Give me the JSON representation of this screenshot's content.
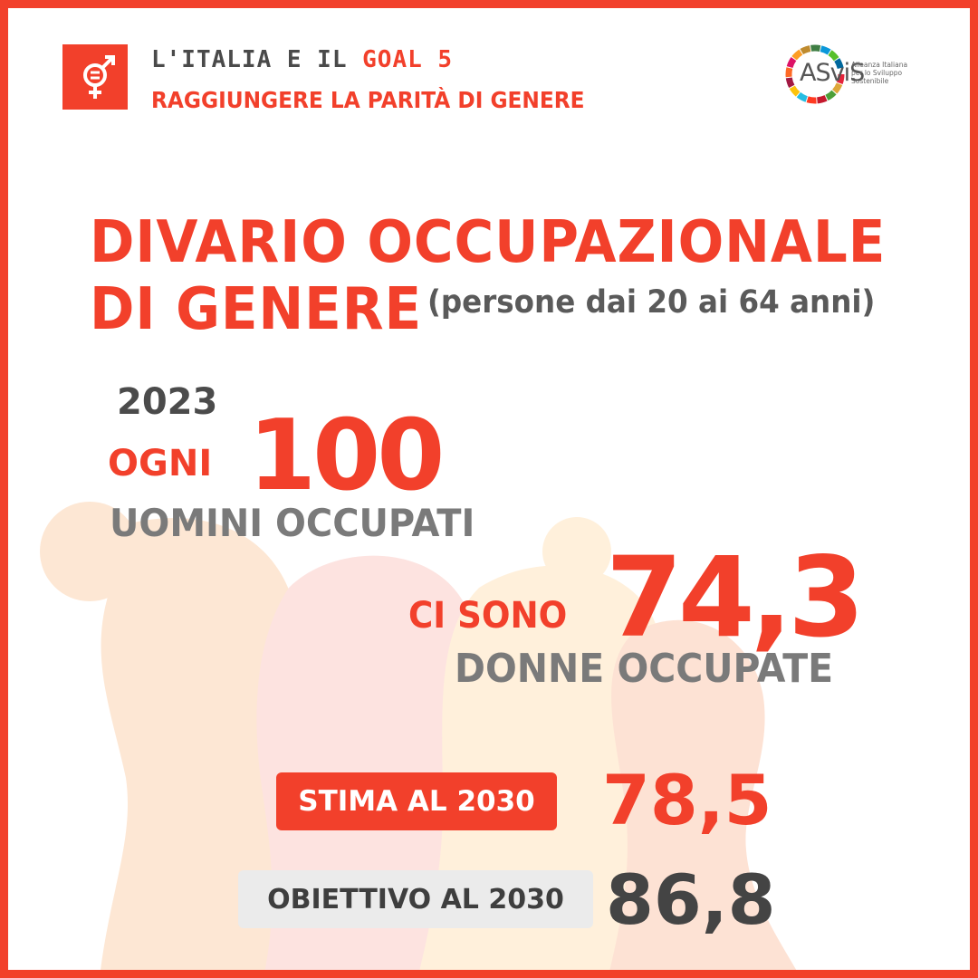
{
  "header": {
    "line1_prefix": "L'ITALIA E IL",
    "line1_goal": "GOAL 5",
    "line2": "RAGGIUNGERE LA PARITÀ DI GENERE",
    "goal_icon": "gender-equality-icon"
  },
  "logo": {
    "name": "ASviS",
    "tagline_1": "Alleanza Italiana",
    "tagline_2": "per lo Sviluppo",
    "tagline_3": "Sostenibile"
  },
  "title": {
    "line1": "DIVARIO OCCUPAZIONALE",
    "line2": "DI GENERE",
    "subtitle": "(persone dai 20 ai 64 anni)"
  },
  "stats": {
    "year": "2023",
    "ogni": "OGNI",
    "men_value": "100",
    "men_label": "UOMINI OCCUPATI",
    "ci_sono": "CI SONO",
    "women_value": "74,3",
    "women_label": "DONNE OCCUPATE"
  },
  "estimate": {
    "label": "STIMA AL 2030",
    "value": "78,5"
  },
  "target": {
    "label": "OBIETTIVO AL 2030",
    "value": "86,8"
  },
  "colors": {
    "accent": "#f2402b",
    "text_dark": "#4b4b4b",
    "text_grey": "#7a7a7a",
    "pill_grey": "#ebebeb"
  }
}
